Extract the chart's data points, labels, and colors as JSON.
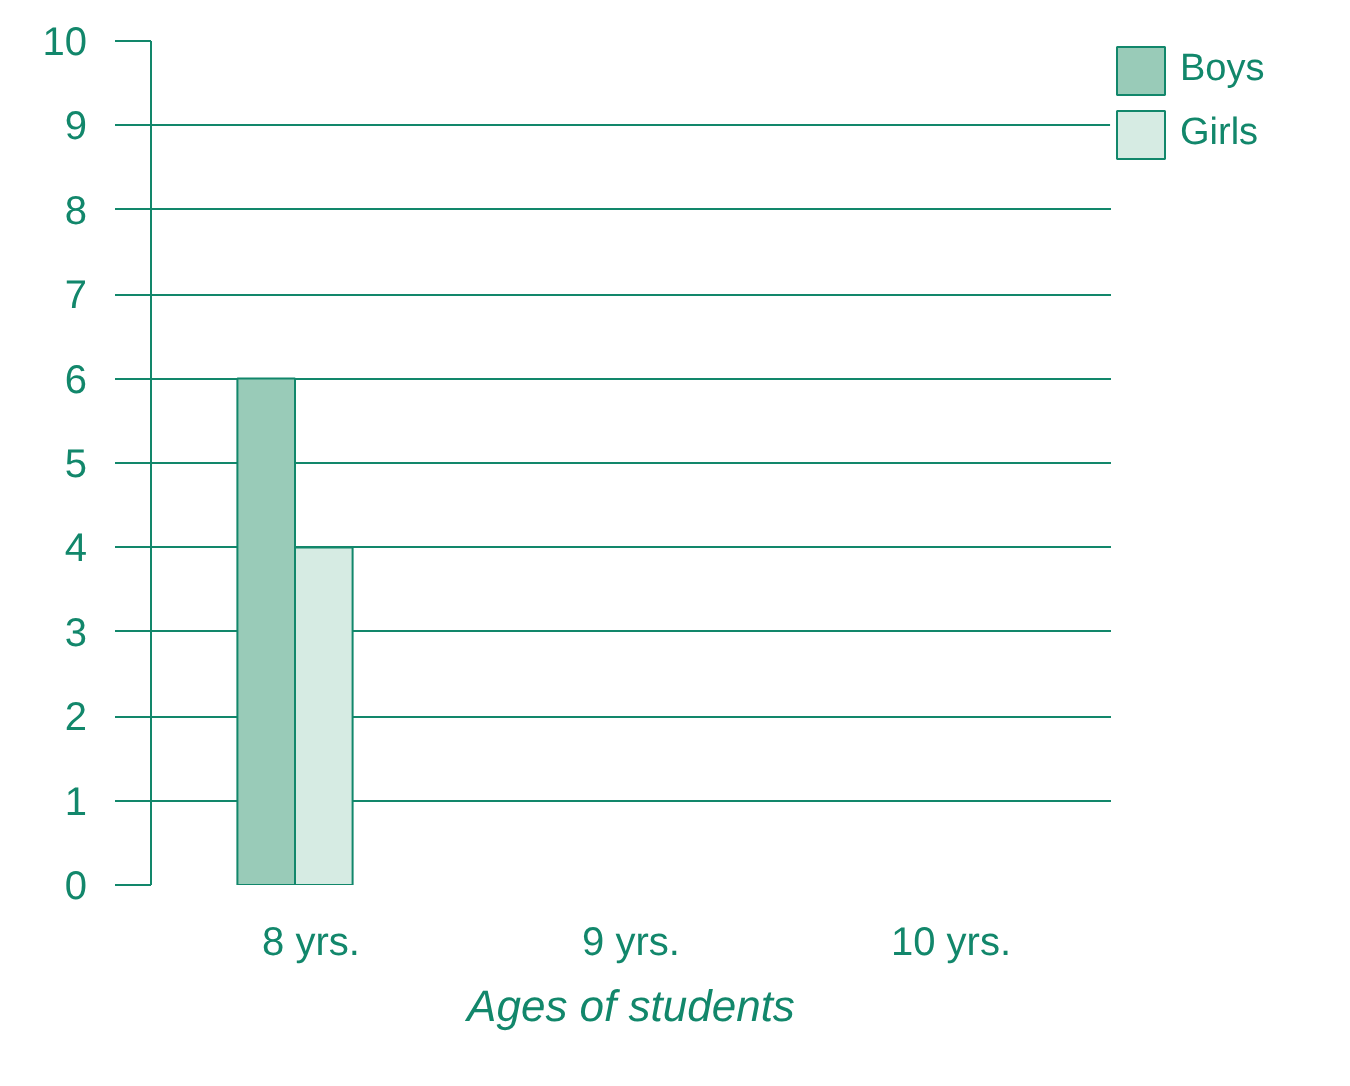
{
  "chart_data": {
    "type": "bar",
    "xlabel": "Ages of students",
    "categories": [
      "8 yrs.",
      "9 yrs.",
      "10 yrs."
    ],
    "series": [
      {
        "name": "Boys",
        "color": "#99cbb8",
        "values": [
          6,
          null,
          null
        ]
      },
      {
        "name": "Girls",
        "color": "#d6ebe3",
        "values": [
          4,
          null,
          null
        ]
      }
    ],
    "ylim": [
      0,
      10
    ],
    "yticks": [
      0,
      1,
      2,
      3,
      4,
      5,
      6,
      7,
      8,
      9,
      10
    ],
    "grid": "y",
    "legend": "top right"
  }
}
